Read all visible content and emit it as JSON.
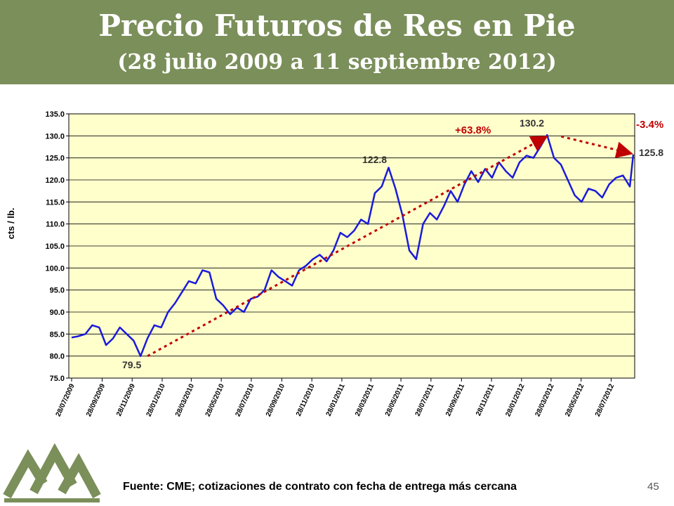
{
  "header": {
    "title": "Precio Futuros de Res en Pie",
    "subtitle": "(28 julio 2009 a 11 septiembre 2012)"
  },
  "footer": {
    "source": "Fuente: CME; cotizaciones de contrato con fecha de entrega más cercana",
    "page_number": "45"
  },
  "colors": {
    "header_bg": "#7b8f5a",
    "plot_bg": "#ffffcc",
    "series": "#1a1adb",
    "trend": "#c00000",
    "logo": "#7b8f5a"
  },
  "chart_data": {
    "type": "line",
    "title": "",
    "xlabel": "",
    "ylabel": "cts / lb.",
    "ylim": [
      75.0,
      135.0
    ],
    "yticks": [
      "75.0",
      "80.0",
      "85.0",
      "90.0",
      "95.0",
      "100.0",
      "105.0",
      "110.0",
      "115.0",
      "120.0",
      "125.0",
      "130.0",
      "135.0"
    ],
    "xticks": [
      "28/07/2009",
      "28/09/2009",
      "28/11/2009",
      "28/01/2010",
      "28/03/2010",
      "28/05/2010",
      "28/07/2010",
      "28/09/2010",
      "28/11/2010",
      "28/01/2011",
      "28/03/2011",
      "28/05/2011",
      "28/07/2011",
      "28/09/2011",
      "28/11/2011",
      "28/01/2012",
      "28/03/2012",
      "28/05/2012",
      "28/07/2012"
    ],
    "grid": true,
    "legend": "none",
    "series": [
      {
        "x": [
          "2009-07-28",
          "2009-08-10",
          "2009-08-25",
          "2009-09-08",
          "2009-09-22",
          "2009-10-06",
          "2009-10-20",
          "2009-11-03",
          "2009-11-17",
          "2009-12-01",
          "2009-12-15",
          "2009-12-29",
          "2010-01-12",
          "2010-01-26",
          "2010-02-09",
          "2010-02-23",
          "2010-03-09",
          "2010-03-23",
          "2010-04-06",
          "2010-04-20",
          "2010-05-04",
          "2010-05-18",
          "2010-06-01",
          "2010-06-15",
          "2010-06-29",
          "2010-07-13",
          "2010-07-27",
          "2010-08-10",
          "2010-08-24",
          "2010-09-07",
          "2010-09-21",
          "2010-10-05",
          "2010-10-19",
          "2010-11-02",
          "2010-11-16",
          "2010-11-30",
          "2010-12-14",
          "2010-12-28",
          "2011-01-11",
          "2011-01-25",
          "2011-02-08",
          "2011-02-22",
          "2011-03-08",
          "2011-03-22",
          "2011-04-05",
          "2011-04-19",
          "2011-05-03",
          "2011-05-17",
          "2011-05-31",
          "2011-06-14",
          "2011-06-28",
          "2011-07-12",
          "2011-07-26",
          "2011-08-09",
          "2011-08-23",
          "2011-09-06",
          "2011-09-20",
          "2011-10-04",
          "2011-10-18",
          "2011-11-01",
          "2011-11-15",
          "2011-11-29",
          "2011-12-13",
          "2011-12-27",
          "2012-01-10",
          "2012-01-24",
          "2012-02-07",
          "2012-02-21",
          "2012-03-06",
          "2012-03-20",
          "2012-04-03",
          "2012-04-17",
          "2012-05-01",
          "2012-05-15",
          "2012-05-29",
          "2012-06-12",
          "2012-06-26",
          "2012-07-10",
          "2012-07-24",
          "2012-08-07",
          "2012-08-21",
          "2012-09-04",
          "2012-09-11"
        ],
        "values": [
          84.2,
          84.5,
          85.0,
          87.0,
          86.5,
          82.5,
          84.0,
          86.5,
          85.0,
          83.5,
          80.0,
          84.0,
          87.0,
          86.5,
          90.0,
          92.0,
          94.5,
          97.0,
          96.5,
          99.5,
          99.0,
          93.0,
          91.5,
          89.5,
          91.0,
          90.0,
          93.0,
          93.5,
          95.0,
          99.5,
          98.0,
          97.0,
          96.0,
          99.5,
          100.5,
          102.0,
          103.0,
          101.5,
          104.0,
          108.0,
          107.0,
          108.5,
          111.0,
          110.0,
          117.0,
          118.5,
          122.8,
          118.0,
          112.0,
          104.0,
          102.0,
          110.0,
          112.5,
          111.0,
          114.0,
          117.5,
          115.0,
          119.0,
          122.0,
          119.5,
          122.5,
          120.5,
          124.0,
          122.0,
          120.5,
          124.0,
          125.5,
          125.0,
          127.5,
          130.2,
          125.0,
          123.5,
          120.0,
          116.5,
          115.0,
          118.0,
          117.5,
          116.0,
          119.0,
          120.5,
          121.0,
          118.5,
          125.8
        ]
      }
    ],
    "annotations": {
      "start_label": "79.5",
      "peak1_label": "122.8",
      "peak2_label": "130.2",
      "end_label": "125.8",
      "gain_label": "+63.8%",
      "loss_label": "-3.4%"
    }
  }
}
